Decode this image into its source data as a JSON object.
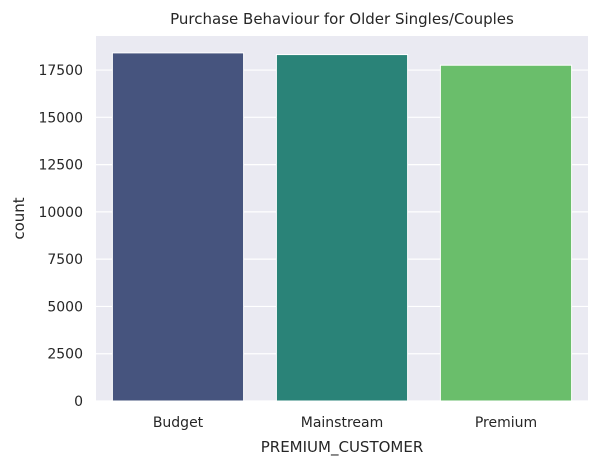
{
  "chart_data": {
    "type": "bar",
    "title": "Purchase Behaviour for Older Singles/Couples",
    "xlabel": "PREMIUM_CUSTOMER",
    "ylabel": "count",
    "categories": [
      "Budget",
      "Mainstream",
      "Premium"
    ],
    "values": [
      18407,
      18318,
      17754
    ],
    "colors": [
      "#46547e",
      "#2a8378",
      "#6abe6b"
    ],
    "ylim": [
      0,
      19300
    ],
    "yticks": [
      0,
      2500,
      5000,
      7500,
      10000,
      12500,
      15000,
      17500
    ],
    "ytick_labels": [
      "0",
      "2500",
      "5000",
      "7500",
      "10000",
      "12500",
      "15000",
      "17500"
    ],
    "grid": true,
    "background": "#eaeaf2",
    "grid_color": "#ffffff"
  }
}
